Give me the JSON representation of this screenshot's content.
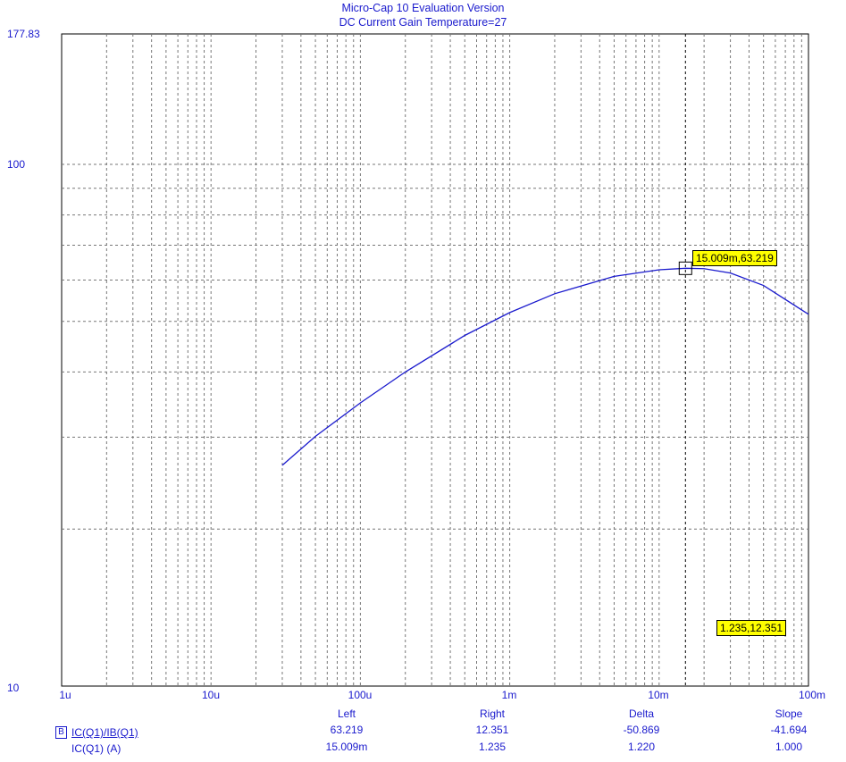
{
  "window": {
    "title_line1": "Micro-Cap 10 Evaluation Version",
    "title_line2": "DC Current Gain Temperature=27"
  },
  "colors": {
    "axis_text": "#1a1acd",
    "trace": "#1a1acd",
    "grid": "#888888",
    "cursor_box_bg": "#ffff00"
  },
  "chart_data": {
    "type": "line",
    "x_scale": "log",
    "y_scale": "log",
    "xlim": [
      1e-06,
      0.1
    ],
    "ylim": [
      10,
      177.83
    ],
    "x_tick_labels": [
      "1u",
      "10u",
      "100u",
      "1m",
      "10m",
      "100m"
    ],
    "y_tick_labels": [
      "177.83",
      "100",
      "10"
    ],
    "grid": true,
    "series": [
      {
        "name": "IC(Q1)/IB(Q1)",
        "x": [
          3e-05,
          5e-05,
          0.0001,
          0.0002,
          0.0005,
          0.001,
          0.002,
          0.005,
          0.01,
          0.015009,
          0.02,
          0.03,
          0.05,
          0.1
        ],
        "y": [
          26.5,
          30.1,
          34.9,
          40.0,
          47.0,
          52.0,
          56.5,
          61.0,
          62.8,
          63.219,
          63.1,
          61.9,
          58.6,
          51.6
        ]
      }
    ],
    "cursors": {
      "left": {
        "x": 0.015009,
        "y": 63.219,
        "label": "15.009m,63.219"
      },
      "right": {
        "x": 1.235,
        "y": 12.351,
        "label": "1.235,12.351"
      }
    }
  },
  "readout": {
    "headers": {
      "left": "Left",
      "right": "Right",
      "delta": "Delta",
      "slope": "Slope"
    },
    "legend_marker": "B",
    "rows": [
      {
        "expr": "IC(Q1)/IB(Q1)",
        "left": "63.219",
        "right": "12.351",
        "delta": "-50.869",
        "slope": "-41.694"
      },
      {
        "expr": "IC(Q1) (A)",
        "left": "15.009m",
        "right": "1.235",
        "delta": "1.220",
        "slope": "1.000"
      }
    ]
  }
}
